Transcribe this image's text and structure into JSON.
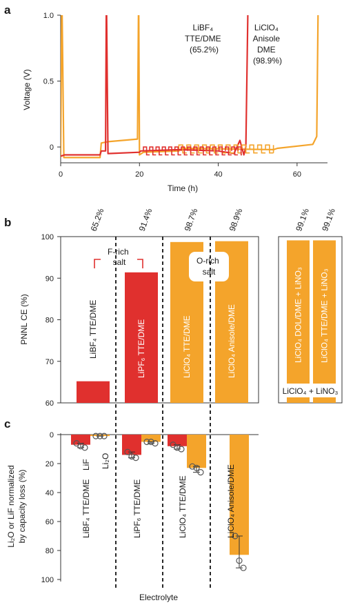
{
  "panel_labels": {
    "a": "a",
    "b": "b",
    "c": "c"
  },
  "colors": {
    "red": "#e0302e",
    "orange": "#f4a42b",
    "axis": "#333333",
    "dash": "#111111"
  },
  "chart_data": [
    {
      "panel": "a",
      "type": "line",
      "xlabel": "Time (h)",
      "ylabel": "Voltage (V)",
      "xlim": [
        0,
        70
      ],
      "ylim": [
        -0.12,
        1.0
      ],
      "x_ticks": [
        "0",
        "20",
        "40",
        "60"
      ],
      "y_ticks": [
        "0",
        "0.5",
        "1.0"
      ],
      "annotations": {
        "red_label": [
          "LiBF₄",
          "TTE/DME",
          "(65.2%)"
        ],
        "orange_label": [
          "LiClO₄",
          "Anisole",
          "DME",
          "(98.9%)"
        ]
      },
      "series": [
        {
          "key": "red",
          "label_ref": "LiBF4 TTE/DME (65.2%)",
          "x": [
            0,
            1,
            10,
            10.3,
            11.4,
            11.6,
            12,
            20,
            20.3,
            30,
            40,
            44,
            45.5,
            46.5,
            47,
            47.6
          ],
          "y": [
            -0.07,
            -0.06,
            -0.06,
            -0.03,
            -0.03,
            1.2,
            -0.05,
            -0.04,
            -0.03,
            -0.02,
            -0.03,
            -0.05,
            0.05,
            -0.06,
            0.0,
            1.2
          ]
        },
        {
          "key": "orange",
          "label_ref": "LiClO4 Anisole DME (98.9%)",
          "x": [
            0,
            0.3,
            0.8,
            10,
            10.3,
            12,
            19.5,
            19.8,
            20,
            21,
            30,
            31,
            54,
            55,
            64,
            65,
            65.4
          ],
          "y": [
            -0.08,
            1.2,
            -0.08,
            -0.08,
            0.03,
            0.04,
            0.06,
            1.2,
            -0.06,
            -0.04,
            -0.03,
            -0.01,
            -0.02,
            -0.01,
            0.02,
            0.08,
            1.2
          ]
        }
      ]
    },
    {
      "panel": "b",
      "type": "bar",
      "ylabel": "PNNL CE (%)",
      "ylim": [
        60,
        100
      ],
      "y_ticks": [
        "60",
        "70",
        "80",
        "90",
        "100"
      ],
      "categories": [
        "LiBF₄ TTE/DME",
        "LiPF₆ TTE/DME",
        "LiClO₄ TTE/DME",
        "LiClO₄ Anisole/DME"
      ],
      "values": [
        65.2,
        91.4,
        98.7,
        98.9
      ],
      "value_labels": [
        "65.2%",
        "91.4%",
        "98.7%",
        "98.9%"
      ],
      "bar_colors": [
        "red",
        "red",
        "orange",
        "orange"
      ],
      "annotations": {
        "f_rich": [
          "F-rich",
          "salt"
        ],
        "o_rich": [
          "O-rich",
          "salt"
        ]
      },
      "inset": {
        "categories": [
          "LiClO₄ DOL/DME + LiNO₃",
          "LiClO₄ TTE/DME + LiNO₃"
        ],
        "values": [
          99.1,
          99.1
        ],
        "value_labels": [
          "99.1%",
          "99.1%"
        ],
        "footer": "LiClO₄ + LiNO₃"
      }
    },
    {
      "panel": "c",
      "type": "bar",
      "xlabel": "Electrolyte",
      "ylabel_lines": [
        "Li₂O or LiF normalized",
        "by capacity loss (%)"
      ],
      "ylim": [
        0,
        100
      ],
      "y_ticks": [
        "0",
        "20",
        "40",
        "60",
        "80",
        "100"
      ],
      "groups": [
        {
          "label": "LiBF₄ TTE/DME",
          "LiF": 7,
          "Li2O": 1,
          "LiF_points": [
            6,
            8,
            9
          ],
          "Li2O_points": [
            1,
            1,
            1
          ]
        },
        {
          "label": "LiPF₆ TTE/DME",
          "LiF": 14,
          "Li2O": 5,
          "LiF_points": [
            12,
            15,
            16
          ],
          "Li2O_points": [
            5,
            5,
            6
          ]
        },
        {
          "label": "LiClO₄ TTE/DME",
          "LiF": 8,
          "Li2O": 23,
          "LiF_points": [
            7,
            9,
            10
          ],
          "Li2O_points": [
            22,
            23,
            26
          ]
        },
        {
          "label": "LiClO₄ Anisole/DME",
          "LiF": null,
          "Li2O": 83,
          "LiF_points": [],
          "Li2O_points": [
            70,
            87,
            92
          ]
        }
      ],
      "bar_labels": {
        "LiF": "LiF",
        "Li2O": "Li₂O"
      }
    }
  ]
}
